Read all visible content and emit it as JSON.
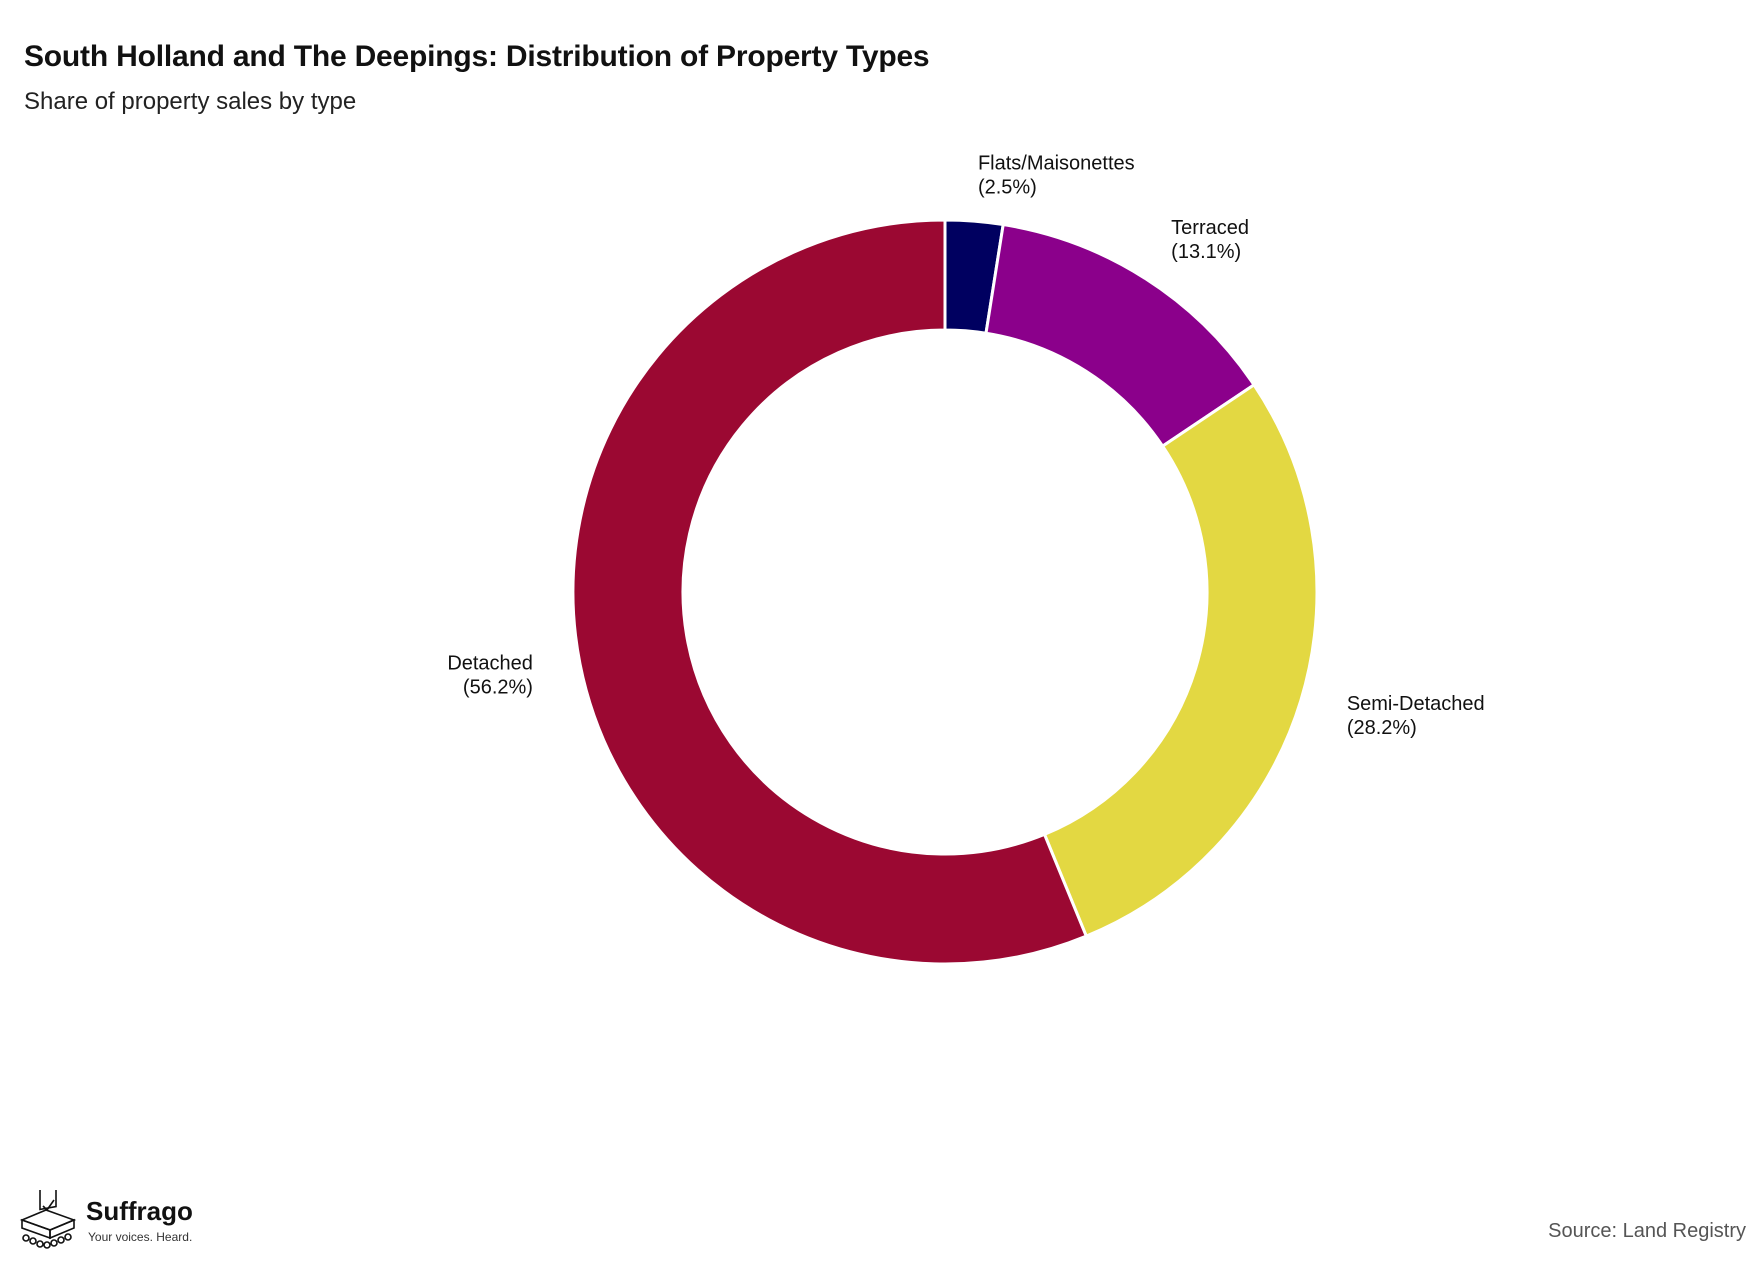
{
  "title": "South Holland and The Deepings: Distribution of Property Types",
  "subtitle": "Share of property sales by type",
  "source": "Source: Land Registry",
  "brand": {
    "name": "Suffrago",
    "tagline": "Your voices. Heard.",
    "icon": "ballot-box-icon"
  },
  "chart_data": {
    "type": "pie",
    "style": "donut",
    "slices": [
      {
        "label": "Flats/Maisonettes",
        "value": 2.5,
        "display": "(2.5%)",
        "color": "#000060"
      },
      {
        "label": "Terraced",
        "value": 13.1,
        "display": "(13.1%)",
        "color": "#8B008B"
      },
      {
        "label": "Semi-Detached",
        "value": 28.2,
        "display": "(28.2%)",
        "color": "#E3D842"
      },
      {
        "label": "Detached",
        "value": 56.2,
        "display": "(56.2%)",
        "color": "#9B0832"
      }
    ],
    "start": "top",
    "direction": "clockwise",
    "legend": "none"
  }
}
